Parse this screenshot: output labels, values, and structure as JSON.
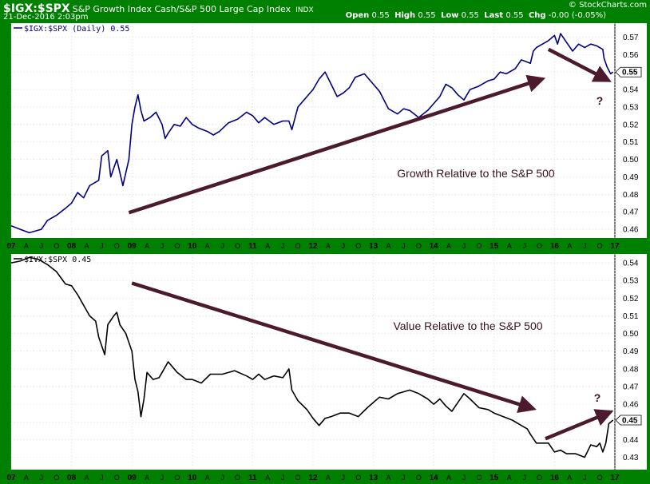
{
  "header": {
    "symbol": "$IGX:$SPX",
    "description": "S&P Growth Index Cash/S&P 500 Large Cap Index",
    "exchange": "INDX",
    "date": "21-Dec-2016 2:03pm",
    "quote": {
      "open_label": "Open",
      "open": "0.55",
      "high_label": "High",
      "high": "0.55",
      "low_label": "Low",
      "low": "0.55",
      "last_label": "Last",
      "last": "0.55",
      "chg_label": "Chg",
      "chg": "-0.00 (-0.05%)"
    },
    "logo": "© StockCharts.com"
  },
  "colors": {
    "frame": "#008000",
    "growth_line": "#000080",
    "value_line": "#000000",
    "arrow": "#4b1a2e",
    "grid": "#c8c8c8"
  },
  "chart_data": [
    {
      "type": "line",
      "legend": "$IGX:$SPX (Daily) 0.55",
      "annotation": "Growth Relative to the S&P 500",
      "question_mark": "?",
      "last_value_label": "0.55",
      "ylim": [
        0.455,
        0.578
      ],
      "yticks": [
        "0.46",
        "0.47",
        "0.48",
        "0.49",
        "0.50",
        "0.51",
        "0.52",
        "0.53",
        "0.54",
        "0.55",
        "0.56",
        "0.57"
      ],
      "xticks": [
        "07",
        "A",
        "J",
        "O",
        "08",
        "A",
        "J",
        "O",
        "09",
        "A",
        "J",
        "O",
        "10",
        "A",
        "J",
        "O",
        "11",
        "A",
        "J",
        "O",
        "12",
        "A",
        "J",
        "O",
        "13",
        "A",
        "J",
        "O",
        "14",
        "A",
        "J",
        "O",
        "15",
        "A",
        "J",
        "O",
        "16",
        "A",
        "J",
        "O",
        "17"
      ],
      "x_range": [
        2007.0,
        2017.0
      ],
      "series": [
        {
          "name": "$IGX:$SPX",
          "x": [
            2007.0,
            2007.15,
            2007.3,
            2007.5,
            2007.6,
            2007.75,
            2007.9,
            2008.0,
            2008.1,
            2008.2,
            2008.3,
            2008.45,
            2008.5,
            2008.6,
            2008.65,
            2008.7,
            2008.75,
            2008.85,
            2008.95,
            2009.0,
            2009.05,
            2009.1,
            2009.15,
            2009.2,
            2009.3,
            2009.4,
            2009.5,
            2009.55,
            2009.6,
            2009.7,
            2009.8,
            2009.9,
            2010.0,
            2010.1,
            2010.25,
            2010.35,
            2010.45,
            2010.6,
            2010.75,
            2010.9,
            2011.0,
            2011.1,
            2011.2,
            2011.35,
            2011.5,
            2011.6,
            2011.65,
            2011.75,
            2011.9,
            2012.0,
            2012.1,
            2012.2,
            2012.3,
            2012.4,
            2012.5,
            2012.6,
            2012.7,
            2012.85,
            2013.0,
            2013.1,
            2013.25,
            2013.4,
            2013.5,
            2013.6,
            2013.75,
            2013.9,
            2014.0,
            2014.1,
            2014.2,
            2014.3,
            2014.4,
            2014.5,
            2014.6,
            2014.75,
            2014.9,
            2015.0,
            2015.1,
            2015.2,
            2015.35,
            2015.45,
            2015.6,
            2015.65,
            2015.7,
            2015.8,
            2015.9,
            2016.0,
            2016.05,
            2016.1,
            2016.2,
            2016.3,
            2016.4,
            2016.5,
            2016.6,
            2016.7,
            2016.8,
            2016.82,
            2016.87,
            2016.93,
            2016.97
          ],
          "values": [
            0.462,
            0.46,
            0.458,
            0.46,
            0.465,
            0.468,
            0.472,
            0.475,
            0.481,
            0.478,
            0.485,
            0.488,
            0.502,
            0.505,
            0.49,
            0.495,
            0.5,
            0.485,
            0.5,
            0.52,
            0.53,
            0.537,
            0.528,
            0.522,
            0.524,
            0.527,
            0.52,
            0.512,
            0.515,
            0.52,
            0.519,
            0.524,
            0.52,
            0.518,
            0.516,
            0.514,
            0.516,
            0.521,
            0.523,
            0.527,
            0.525,
            0.521,
            0.524,
            0.52,
            0.522,
            0.522,
            0.517,
            0.53,
            0.536,
            0.54,
            0.546,
            0.55,
            0.543,
            0.536,
            0.538,
            0.541,
            0.547,
            0.549,
            0.543,
            0.539,
            0.529,
            0.526,
            0.529,
            0.528,
            0.524,
            0.528,
            0.532,
            0.536,
            0.543,
            0.541,
            0.537,
            0.534,
            0.54,
            0.542,
            0.545,
            0.546,
            0.55,
            0.549,
            0.552,
            0.557,
            0.555,
            0.562,
            0.564,
            0.566,
            0.568,
            0.571,
            0.566,
            0.572,
            0.567,
            0.562,
            0.566,
            0.564,
            0.566,
            0.565,
            0.563,
            0.558,
            0.553,
            0.549,
            0.55
          ]
        }
      ],
      "trend_arrows": [
        {
          "from": [
            2008.95,
            0.4695
          ],
          "to": [
            2015.75,
            0.5455
          ]
        },
        {
          "from": [
            2015.9,
            0.563
          ],
          "to": [
            2016.85,
            0.546
          ]
        }
      ]
    },
    {
      "type": "line",
      "legend": "$IVX:$SPX 0.45",
      "annotation": "Value Relative to the S&P 500",
      "question_mark": "?",
      "last_value_label": "0.45",
      "ylim": [
        0.423,
        0.545
      ],
      "yticks": [
        "0.43",
        "0.44",
        "0.45",
        "0.46",
        "0.47",
        "0.48",
        "0.49",
        "0.50",
        "0.51",
        "0.52",
        "0.53",
        "0.54"
      ],
      "xticks": [
        "07",
        "A",
        "J",
        "O",
        "08",
        "A",
        "J",
        "O",
        "09",
        "A",
        "J",
        "O",
        "10",
        "A",
        "J",
        "O",
        "11",
        "A",
        "J",
        "O",
        "12",
        "A",
        "J",
        "O",
        "13",
        "A",
        "J",
        "O",
        "14",
        "A",
        "J",
        "O",
        "15",
        "A",
        "J",
        "O",
        "16",
        "A",
        "J",
        "O",
        "17"
      ],
      "x_range": [
        2007.0,
        2017.0
      ],
      "series": [
        {
          "name": "$IVX:$SPX",
          "x": [
            2007.0,
            2007.15,
            2007.3,
            2007.45,
            2007.6,
            2007.75,
            2007.9,
            2008.0,
            2008.1,
            2008.2,
            2008.3,
            2008.4,
            2008.45,
            2008.55,
            2008.6,
            2008.7,
            2008.75,
            2008.8,
            2008.9,
            2009.0,
            2009.05,
            2009.1,
            2009.15,
            2009.2,
            2009.25,
            2009.35,
            2009.45,
            2009.5,
            2009.6,
            2009.75,
            2009.9,
            2010.0,
            2010.15,
            2010.3,
            2010.5,
            2010.7,
            2010.9,
            2011.0,
            2011.1,
            2011.2,
            2011.35,
            2011.5,
            2011.6,
            2011.65,
            2011.75,
            2011.9,
            2012.0,
            2012.1,
            2012.2,
            2012.3,
            2012.45,
            2012.6,
            2012.75,
            2012.9,
            2013.0,
            2013.1,
            2013.25,
            2013.4,
            2013.5,
            2013.6,
            2013.75,
            2013.9,
            2014.0,
            2014.1,
            2014.2,
            2014.3,
            2014.4,
            2014.5,
            2014.6,
            2014.75,
            2014.9,
            2015.0,
            2015.15,
            2015.3,
            2015.45,
            2015.55,
            2015.6,
            2015.7,
            2015.8,
            2015.9,
            2016.0,
            2016.1,
            2016.2,
            2016.35,
            2016.5,
            2016.6,
            2016.7,
            2016.75,
            2016.8,
            2016.85,
            2016.9,
            2016.97
          ],
          "values": [
            0.54,
            0.541,
            0.543,
            0.542,
            0.539,
            0.535,
            0.528,
            0.527,
            0.522,
            0.516,
            0.51,
            0.507,
            0.498,
            0.488,
            0.505,
            0.51,
            0.512,
            0.505,
            0.5,
            0.49,
            0.474,
            0.467,
            0.453,
            0.463,
            0.478,
            0.474,
            0.475,
            0.478,
            0.484,
            0.478,
            0.474,
            0.474,
            0.472,
            0.477,
            0.477,
            0.479,
            0.476,
            0.474,
            0.477,
            0.474,
            0.476,
            0.475,
            0.48,
            0.468,
            0.462,
            0.457,
            0.452,
            0.448,
            0.452,
            0.453,
            0.455,
            0.455,
            0.453,
            0.458,
            0.461,
            0.464,
            0.463,
            0.466,
            0.467,
            0.468,
            0.466,
            0.463,
            0.46,
            0.463,
            0.459,
            0.456,
            0.461,
            0.466,
            0.463,
            0.458,
            0.457,
            0.455,
            0.453,
            0.451,
            0.448,
            0.446,
            0.443,
            0.438,
            0.438,
            0.438,
            0.433,
            0.434,
            0.432,
            0.432,
            0.43,
            0.437,
            0.436,
            0.438,
            0.433,
            0.438,
            0.449,
            0.451
          ]
        }
      ],
      "trend_arrows": [
        {
          "from": [
            2009.0,
            0.5285
          ],
          "to": [
            2015.6,
            0.458
          ]
        },
        {
          "from": [
            2015.85,
            0.4405
          ],
          "to": [
            2016.88,
            0.455
          ]
        }
      ]
    }
  ]
}
